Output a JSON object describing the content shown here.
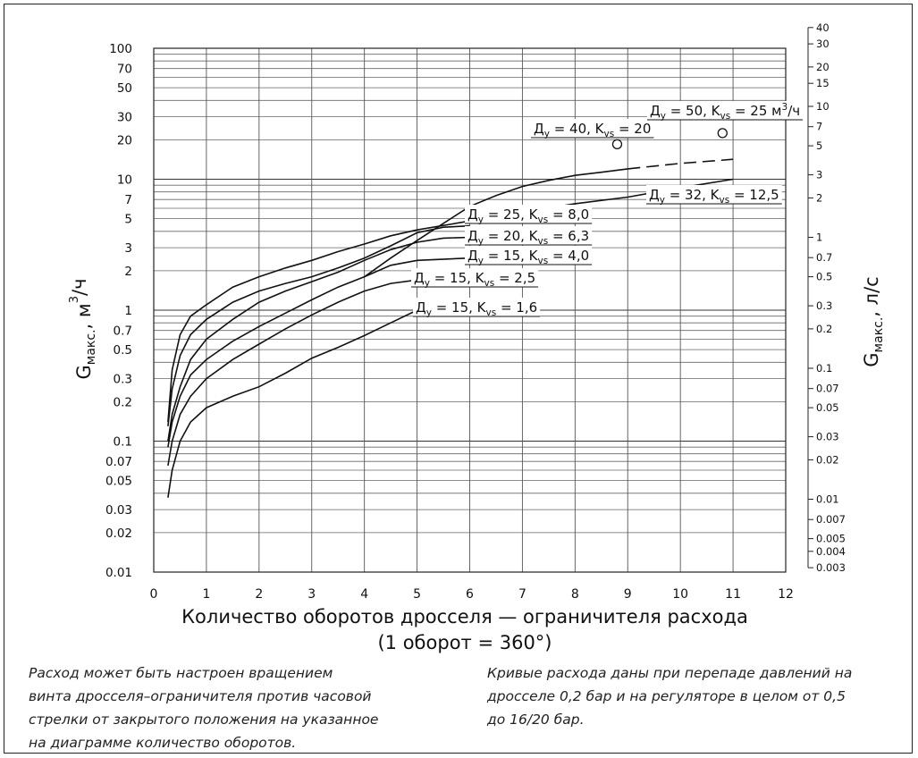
{
  "chart_data": {
    "type": "line",
    "xlabel": "Количество оборотов дросселя — ограничителя расхода",
    "xlabel_note": "(1 оборот = 360°)",
    "ylabel_left": {
      "main": "G",
      "sub": "макс.",
      "rest": ", м",
      "sup": "3",
      "tail": "/ч"
    },
    "ylabel_right": {
      "main": "G",
      "sub": "макс.",
      "rest": ", л/с"
    },
    "xlim": [
      0,
      12
    ],
    "x_ticks": [
      "0",
      "1",
      "2",
      "3",
      "4",
      "5",
      "6",
      "7",
      "8",
      "9",
      "10",
      "11",
      "12"
    ],
    "ylim_left": [
      0.01,
      100
    ],
    "y_scale": "log",
    "grid": true,
    "left_ticks": [
      {
        "v": 100,
        "t": "100"
      },
      {
        "v": 70,
        "t": "70"
      },
      {
        "v": 50,
        "t": "50"
      },
      {
        "v": 30,
        "t": "30"
      },
      {
        "v": 20,
        "t": "20"
      },
      {
        "v": 10,
        "t": "10"
      },
      {
        "v": 7,
        "t": "7"
      },
      {
        "v": 5,
        "t": "5"
      },
      {
        "v": 3,
        "t": "3"
      },
      {
        "v": 2,
        "t": "2"
      },
      {
        "v": 1,
        "t": "1"
      },
      {
        "v": 0.7,
        "t": "0.7"
      },
      {
        "v": 0.5,
        "t": "0.5"
      },
      {
        "v": 0.3,
        "t": "0.3"
      },
      {
        "v": 0.2,
        "t": "0.2"
      },
      {
        "v": 0.1,
        "t": "0.1"
      },
      {
        "v": 0.07,
        "t": "0.07"
      },
      {
        "v": 0.05,
        "t": "0.05"
      },
      {
        "v": 0.03,
        "t": "0.03"
      },
      {
        "v": 0.02,
        "t": "0.02"
      },
      {
        "v": 0.01,
        "t": "0.01"
      }
    ],
    "right_ticks": [
      {
        "v": 40,
        "t": "40"
      },
      {
        "v": 30,
        "t": "30"
      },
      {
        "v": 20,
        "t": "20"
      },
      {
        "v": 15,
        "t": "15"
      },
      {
        "v": 10,
        "t": "10"
      },
      {
        "v": 7,
        "t": "7"
      },
      {
        "v": 5,
        "t": "5"
      },
      {
        "v": 3,
        "t": "3"
      },
      {
        "v": 2,
        "t": "2"
      },
      {
        "v": 1,
        "t": "1"
      },
      {
        "v": 0.7,
        "t": "0.7"
      },
      {
        "v": 0.5,
        "t": "0.5"
      },
      {
        "v": 0.3,
        "t": "0.3"
      },
      {
        "v": 0.2,
        "t": "0.2"
      },
      {
        "v": 0.1,
        "t": "0.1"
      },
      {
        "v": 0.07,
        "t": "0.07"
      },
      {
        "v": 0.05,
        "t": "0.05"
      },
      {
        "v": 0.03,
        "t": "0.03"
      },
      {
        "v": 0.02,
        "t": "0.02"
      },
      {
        "v": 0.01,
        "t": "0.01"
      },
      {
        "v": 0.007,
        "t": "0.007"
      },
      {
        "v": 0.005,
        "t": "0.005"
      },
      {
        "v": 0.004,
        "t": "0.004"
      },
      {
        "v": 0.003,
        "t": "0.003"
      }
    ],
    "series": [
      {
        "name": "Дy = 15, Kvs = 1,6",
        "dy": "15",
        "kvs": "1,6",
        "points": [
          [
            0.27,
            0.037
          ],
          [
            0.35,
            0.06
          ],
          [
            0.5,
            0.1
          ],
          [
            0.7,
            0.14
          ],
          [
            1.0,
            0.18
          ],
          [
            1.5,
            0.22
          ],
          [
            2.0,
            0.26
          ],
          [
            2.5,
            0.33
          ],
          [
            3.0,
            0.43
          ],
          [
            3.5,
            0.52
          ],
          [
            4.0,
            0.64
          ],
          [
            4.5,
            0.8
          ],
          [
            5.0,
            1.0
          ]
        ]
      },
      {
        "name": "Дy = 15, Kvs = 2,5",
        "dy": "15",
        "kvs": "2,5",
        "points": [
          [
            0.27,
            0.065
          ],
          [
            0.35,
            0.1
          ],
          [
            0.5,
            0.16
          ],
          [
            0.7,
            0.22
          ],
          [
            1.0,
            0.3
          ],
          [
            1.5,
            0.42
          ],
          [
            2.0,
            0.55
          ],
          [
            2.5,
            0.72
          ],
          [
            3.0,
            0.92
          ],
          [
            3.5,
            1.15
          ],
          [
            4.0,
            1.4
          ],
          [
            4.5,
            1.6
          ],
          [
            5.0,
            1.7
          ]
        ]
      },
      {
        "name": "Дy = 15, Kvs = 4,0",
        "dy": "15",
        "kvs": "4,0",
        "points": [
          [
            0.27,
            0.09
          ],
          [
            0.35,
            0.14
          ],
          [
            0.5,
            0.22
          ],
          [
            0.7,
            0.32
          ],
          [
            1.0,
            0.42
          ],
          [
            1.5,
            0.58
          ],
          [
            2.0,
            0.75
          ],
          [
            2.5,
            0.95
          ],
          [
            3.0,
            1.2
          ],
          [
            3.5,
            1.5
          ],
          [
            4.0,
            1.8
          ],
          [
            4.5,
            2.2
          ],
          [
            5.0,
            2.4
          ],
          [
            6.0,
            2.5
          ]
        ]
      },
      {
        "name": "Дy = 20, Kvs = 6,3",
        "dy": "20",
        "kvs": "6,3",
        "points": [
          [
            0.27,
            0.1
          ],
          [
            0.35,
            0.16
          ],
          [
            0.5,
            0.26
          ],
          [
            0.7,
            0.42
          ],
          [
            1.0,
            0.6
          ],
          [
            1.5,
            0.85
          ],
          [
            2.0,
            1.15
          ],
          [
            2.5,
            1.4
          ],
          [
            3.0,
            1.65
          ],
          [
            3.5,
            1.95
          ],
          [
            4.0,
            2.4
          ],
          [
            4.5,
            2.9
          ],
          [
            5.0,
            3.3
          ],
          [
            5.5,
            3.55
          ],
          [
            6.0,
            3.6
          ]
        ]
      },
      {
        "name": "Дy = 25, Kvs = 8,0",
        "dy": "25",
        "kvs": "8,0",
        "points": [
          [
            0.27,
            0.13
          ],
          [
            0.35,
            0.25
          ],
          [
            0.5,
            0.45
          ],
          [
            0.7,
            0.65
          ],
          [
            1.0,
            0.85
          ],
          [
            1.5,
            1.15
          ],
          [
            2.0,
            1.4
          ],
          [
            2.5,
            1.6
          ],
          [
            3.0,
            1.8
          ],
          [
            3.5,
            2.1
          ],
          [
            4.0,
            2.5
          ],
          [
            4.5,
            3.1
          ],
          [
            5.0,
            3.9
          ],
          [
            5.5,
            4.3
          ],
          [
            6.0,
            4.4
          ]
        ]
      },
      {
        "name": "Дy = 32, Kvs = 12,5",
        "dy": "32",
        "kvs": "12,5",
        "points": [
          [
            0.27,
            0.14
          ],
          [
            0.35,
            0.35
          ],
          [
            0.5,
            0.65
          ],
          [
            0.7,
            0.9
          ],
          [
            1.0,
            1.1
          ],
          [
            1.5,
            1.5
          ],
          [
            2.0,
            1.8
          ],
          [
            2.5,
            2.1
          ],
          [
            3.0,
            2.4
          ],
          [
            3.5,
            2.8
          ],
          [
            4.0,
            3.2
          ],
          [
            4.5,
            3.7
          ],
          [
            5.0,
            4.1
          ],
          [
            6.0,
            4.8
          ],
          [
            7.0,
            5.6
          ],
          [
            8.0,
            6.5
          ],
          [
            9.0,
            7.3
          ],
          [
            10.0,
            8.6
          ],
          [
            11.0,
            10.0
          ]
        ]
      },
      {
        "name": "Дy = 40, Kvs = 20",
        "dy": "40",
        "kvs": "20",
        "marker": [
          8.8,
          18.5
        ]
      },
      {
        "name": "Дy = 50, Kvs = 25 м3/ч",
        "dy": "50",
        "kvs": "25",
        "unit": "м",
        "unit_sup": "3",
        "unit_tail": "/ч",
        "marker": [
          10.8,
          22.5
        ],
        "points": [
          [
            4.0,
            1.8
          ],
          [
            4.5,
            2.5
          ],
          [
            5.0,
            3.4
          ],
          [
            5.5,
            4.6
          ],
          [
            6.0,
            6.2
          ],
          [
            6.5,
            7.5
          ],
          [
            7.0,
            8.8
          ],
          [
            7.5,
            9.8
          ],
          [
            8.0,
            10.7
          ],
          [
            8.5,
            11.3
          ],
          [
            9.0,
            12.0
          ]
        ],
        "dashed_points": [
          [
            9.0,
            12.0
          ],
          [
            10.0,
            13.2
          ],
          [
            11.0,
            14.2
          ]
        ]
      }
    ]
  },
  "notes": {
    "left": [
      "Расход может быть настроен вращением",
      "винта дросселя–ограничителя против часовой",
      "стрелки от закрытого положения на указанное",
      "на диаграмме количество оборотов."
    ],
    "right": [
      "Кривые расхода даны при перепаде давлений на",
      "дросселе 0,2 бар и на регуляторе в целом от 0,5",
      "до 16/20 бар."
    ]
  }
}
